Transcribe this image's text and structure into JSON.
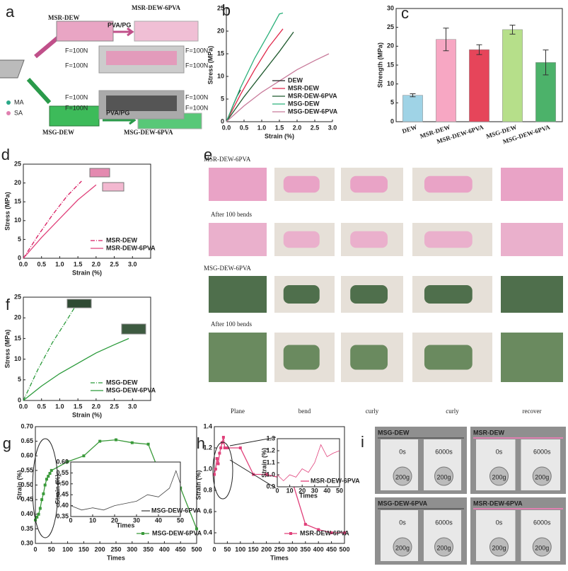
{
  "chart_data": [
    {
      "type": "line",
      "panel": "b",
      "xlabel": "Strain (%)",
      "ylabel": "Stress (MPa)",
      "xlim": [
        0,
        3.0
      ],
      "xticks": [
        {
          "value": 0,
          "label": "0.0"
        },
        0.5,
        {
          "value": 1,
          "label": "1.0"
        },
        1.5,
        {
          "value": 2,
          "label": "2.0"
        },
        2.5,
        {
          "value": 3,
          "label": "3.0"
        }
      ],
      "ylim": [
        0,
        25
      ],
      "yticks": [
        0,
        5,
        10,
        15,
        20,
        25
      ],
      "legend": "lower right",
      "frame": false,
      "series": [
        {
          "name": "DEW",
          "color": "#222222",
          "x": [
            0,
            0.1,
            0.2,
            0.3,
            0.4
          ],
          "values": [
            0,
            1.8,
            3.8,
            5.6,
            7
          ]
        },
        {
          "name": "MSR-DEW",
          "color": "#e0284a",
          "x": [
            0,
            0.4,
            0.8,
            1.2,
            1.6
          ],
          "values": [
            0,
            6,
            11.5,
            16.5,
            20.5
          ]
        },
        {
          "name": "MSR-DEW-6PVA",
          "color": "#1f5a2e",
          "x": [
            0,
            0.5,
            1.0,
            1.5,
            1.9
          ],
          "values": [
            0,
            5.5,
            10.5,
            15.5,
            19.8
          ]
        },
        {
          "name": "MSG-DEW",
          "color": "#2ab07a",
          "x": [
            0,
            0.4,
            0.8,
            1.2,
            1.5,
            1.6
          ],
          "values": [
            0,
            7.5,
            14,
            19.5,
            23.8,
            24
          ]
        },
        {
          "name": "MSG-DEW-6PVA",
          "color": "#c87a9a",
          "x": [
            0,
            0.5,
            1,
            1.5,
            2,
            2.5,
            2.9
          ],
          "values": [
            0,
            3.5,
            6.5,
            9,
            11.5,
            13.5,
            15
          ]
        }
      ]
    },
    {
      "type": "bar",
      "panel": "c",
      "ylabel": "Strength (MPa)",
      "categories": [
        "DEW",
        "MSR-DEW",
        "MSR-DEW-6PVA",
        "MSG-DEW",
        "MSG-DEW-6PVA"
      ],
      "values": [
        7,
        21.8,
        19.1,
        24.4,
        15.7
      ],
      "errors": [
        0.4,
        3,
        1.3,
        1.2,
        3.3
      ],
      "colors": [
        "#9fd3e6",
        "#f7a7c3",
        "#e6455a",
        "#b6df8a",
        "#4cb26a"
      ],
      "ylim": [
        0,
        30
      ],
      "yticks": [
        0,
        5,
        10,
        15,
        20,
        25,
        30
      ],
      "frame": true
    },
    {
      "type": "line",
      "panel": "d",
      "xlabel": "Strain (%)",
      "ylabel": "Stress (MPa)",
      "xlim": [
        0,
        3.5
      ],
      "xticks": [
        {
          "value": 0,
          "label": "0.0"
        },
        0.5,
        {
          "value": 1,
          "label": "1.0"
        },
        1.5,
        {
          "value": 2,
          "label": "2.0"
        },
        2.5,
        {
          "value": 3,
          "label": "3.0"
        }
      ],
      "ylim": [
        0,
        25
      ],
      "yticks": [
        0,
        5,
        10,
        15,
        20,
        25
      ],
      "legend": "lower right",
      "frame": true,
      "series": [
        {
          "name": "MSR-DEW",
          "color": "#d81b60",
          "dash": "dashdot",
          "x": [
            0,
            0.4,
            0.8,
            1.2,
            1.6
          ],
          "values": [
            0,
            6,
            11.5,
            16.5,
            20.5
          ]
        },
        {
          "name": "MSR-DEW-6PVA",
          "color": "#e0407a",
          "x": [
            0,
            0.5,
            1.0,
            1.5,
            2.0
          ],
          "values": [
            0,
            5.5,
            10.5,
            15.5,
            19.5
          ]
        }
      ]
    },
    {
      "type": "line",
      "panel": "f",
      "xlabel": "Strain (%)",
      "ylabel": "Stress (MPa)",
      "xlim": [
        0,
        3.5
      ],
      "xticks": [
        {
          "value": 0,
          "label": "0.0"
        },
        0.5,
        {
          "value": 1,
          "label": "1.0"
        },
        1.5,
        {
          "value": 2,
          "label": "2.0"
        },
        2.5,
        {
          "value": 3,
          "label": "3.0"
        }
      ],
      "ylim": [
        0,
        25
      ],
      "yticks": [
        0,
        5,
        10,
        15,
        20,
        25
      ],
      "legend": "lower right",
      "frame": true,
      "series": [
        {
          "name": "MSG-DEW",
          "color": "#2a9a3a",
          "dash": "dashdot",
          "x": [
            0,
            0.4,
            0.8,
            1.2,
            1.5,
            1.6
          ],
          "values": [
            0,
            7.5,
            14,
            19.5,
            23.8,
            24
          ]
        },
        {
          "name": "MSG-DEW-6PVA",
          "color": "#2a9a3a",
          "x": [
            0,
            0.5,
            1,
            1.5,
            2,
            2.5,
            2.9
          ],
          "values": [
            0,
            3.5,
            6.5,
            9,
            11.5,
            13.5,
            15
          ]
        }
      ]
    },
    {
      "type": "line",
      "panel": "g",
      "xlabel": "Times",
      "ylabel": "Strain (%)",
      "xlim": [
        0,
        500
      ],
      "xticks": [
        0,
        50,
        100,
        150,
        200,
        250,
        300,
        350,
        400,
        450,
        500
      ],
      "ylim": [
        0.3,
        0.7
      ],
      "yticks": [
        {
          "value": 0.3,
          "label": "0.30"
        },
        0.35,
        {
          "value": 0.4,
          "label": "0.40"
        },
        0.45,
        {
          "value": 0.5,
          "label": "0.50"
        },
        0.55,
        {
          "value": 0.6,
          "label": "0.60"
        },
        0.65,
        {
          "value": 0.7,
          "label": "0.70"
        }
      ],
      "legend": "lower right",
      "frame": true,
      "series": [
        {
          "name": "MSG-DEW-6PVA",
          "color": "#3a9a3a",
          "marker": "square",
          "x": [
            0,
            5,
            10,
            15,
            20,
            25,
            30,
            35,
            40,
            45,
            50,
            100,
            150,
            200,
            250,
            300,
            350,
            400,
            450,
            500
          ],
          "values": [
            0.38,
            0.39,
            0.4,
            0.42,
            0.45,
            0.47,
            0.5,
            0.52,
            0.53,
            0.54,
            0.55,
            0.58,
            0.6,
            0.65,
            0.655,
            0.645,
            0.64,
            0.5,
            0.49,
            0.35
          ]
        }
      ],
      "inset": {
        "type": "line",
        "xlabel": "Times",
        "ylabel": "Strain (%)",
        "xlim": [
          0,
          50
        ],
        "xticks": [
          0,
          10,
          20,
          30,
          40,
          50
        ],
        "ylim": [
          0.35,
          0.6
        ],
        "yticks": [
          0.35,
          {
            "value": 0.4,
            "label": "0.40"
          },
          0.45,
          {
            "value": 0.5,
            "label": "0.50"
          },
          0.55,
          {
            "value": 0.6,
            "label": "0.60"
          }
        ],
        "legend": "lower right",
        "frame": true,
        "series": [
          {
            "name": "MSG-DEW-6PVA",
            "color": "#444444",
            "x": [
              0,
              5,
              10,
              15,
              20,
              25,
              30,
              35,
              40,
              45,
              48,
              50
            ],
            "values": [
              0.4,
              0.38,
              0.39,
              0.38,
              0.4,
              0.41,
              0.42,
              0.45,
              0.44,
              0.48,
              0.56,
              0.5
            ]
          }
        ]
      }
    },
    {
      "type": "line",
      "panel": "h",
      "xlabel": "Times",
      "ylabel": "Strain (%)",
      "xlim": [
        0,
        500
      ],
      "xticks": [
        0,
        50,
        100,
        150,
        200,
        250,
        300,
        350,
        400,
        450,
        500
      ],
      "ylim": [
        0.3,
        1.4
      ],
      "yticks": [
        0.4,
        0.6,
        0.8,
        {
          "value": 1,
          "label": "1.0"
        },
        1.2,
        1.4
      ],
      "legend": "lower right",
      "frame": true,
      "series": [
        {
          "name": "MSR-DEW-6PVA",
          "color": "#e0407a",
          "marker": "square",
          "x": [
            0,
            5,
            10,
            15,
            20,
            25,
            30,
            35,
            40,
            50,
            100,
            150,
            200,
            250,
            300,
            350,
            400,
            450,
            500
          ],
          "values": [
            0.95,
            1.0,
            1.1,
            1.05,
            1.15,
            1.2,
            1.25,
            1.3,
            1.2,
            1.2,
            1.2,
            0.95,
            0.95,
            0.92,
            0.88,
            0.48,
            0.43,
            0.4,
            0.4
          ]
        }
      ],
      "inset": {
        "type": "line",
        "xlabel": "Times",
        "ylabel": "Strain (%)",
        "xlim": [
          0,
          50
        ],
        "xticks": [
          0,
          10,
          20,
          30,
          40,
          50
        ],
        "ylim": [
          0.9,
          1.3
        ],
        "yticks": [
          0.9,
          {
            "value": 1,
            "label": "1.0"
          },
          1.1,
          1.2,
          1.3
        ],
        "legend": "lower right",
        "frame": true,
        "series": [
          {
            "name": "MSR-DEW-6PVA",
            "color": "#e0407a",
            "x": [
              0,
              5,
              10,
              15,
              20,
              25,
              30,
              35,
              40,
              45,
              50
            ],
            "values": [
              1.0,
              0.95,
              1.0,
              0.98,
              1.05,
              1.02,
              1.1,
              1.25,
              1.15,
              1.18,
              1.2
            ]
          }
        ]
      }
    }
  ],
  "figure_a": {
    "panel": "a",
    "top_label": "MSR-DEW",
    "top_arrow": "PVA/PG",
    "top_result": "MSR-DEW-6PVA",
    "forces": [
      "F=100N",
      "F=100N",
      "F=100N",
      "F=100N",
      "F=100N",
      "F=100N",
      "F=100N",
      "F=100N"
    ],
    "legend": [
      "MA",
      "SA"
    ],
    "bottom_label": "MSG-DEW",
    "bottom_arrow": "PVA/PG",
    "bottom_result": "MSG-DEW-6PVA"
  },
  "figure_e": {
    "panel": "e",
    "rows": [
      "MSR-DEW-6PVA",
      "After 100 bends",
      "MSG-DEW-6PVA",
      "After 100 bends"
    ],
    "columns": [
      "Plane",
      "bend",
      "curly",
      "curly",
      "recover"
    ]
  },
  "figure_i": {
    "panel": "i",
    "cells": [
      {
        "title": "MSG-DEW",
        "times": [
          "0s",
          "6000s"
        ],
        "weights": [
          "200g",
          "200g"
        ]
      },
      {
        "title": "MSR-DEW",
        "times": [
          "0s",
          "6000s"
        ],
        "weights": [
          "200g",
          "200g"
        ]
      },
      {
        "title": "MSG-DEW-6PVA",
        "times": [
          "0s",
          "6000s"
        ],
        "weights": [
          "200g",
          "200g"
        ]
      },
      {
        "title": "MSR-DEW-6PVA",
        "times": [
          "0s",
          "6000s"
        ],
        "weights": [
          "200g",
          "200g"
        ]
      }
    ]
  }
}
